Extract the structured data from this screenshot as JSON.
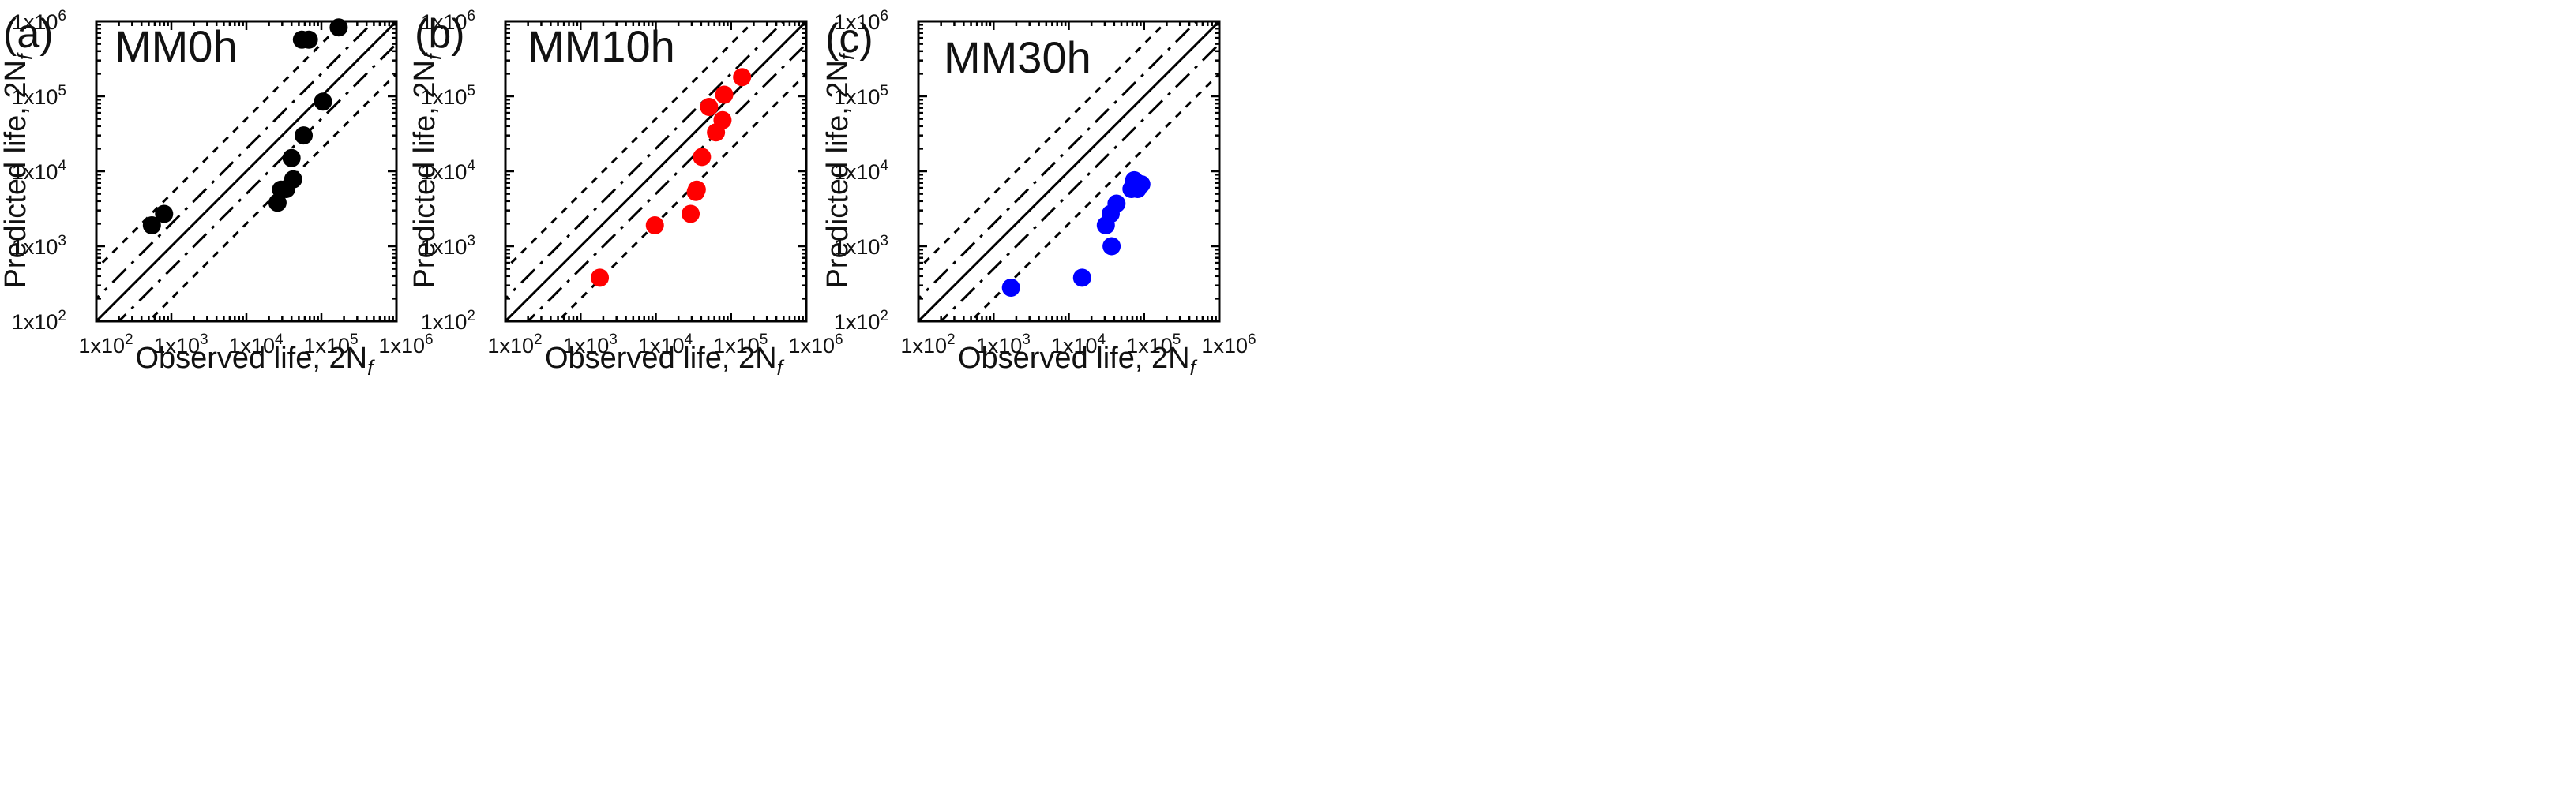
{
  "figure": {
    "panels": [
      {
        "panel_label": "(a)",
        "title": "MM0h"
      },
      {
        "panel_label": "(b)",
        "title": "MM10h"
      },
      {
        "panel_label": "(c)",
        "title": "MM30h"
      }
    ],
    "xlabel": "Observed life, 2N",
    "xlabel_sub": "f",
    "ylabel": "Predicted life, 2N",
    "ylabel_sub": "f",
    "tick_labels": [
      {
        "base": "1x10",
        "exp": "2"
      },
      {
        "base": "1x10",
        "exp": "3"
      },
      {
        "base": "1x10",
        "exp": "4"
      },
      {
        "base": "1x10",
        "exp": "5"
      },
      {
        "base": "1x10",
        "exp": "6"
      }
    ]
  },
  "chart_data": [
    {
      "type": "scatter",
      "title": "MM0h",
      "xlabel": "Observed life, 2Nf",
      "ylabel": "Predicted life, 2Nf",
      "xscale": "log",
      "yscale": "log",
      "xlim": [
        100,
        1000000
      ],
      "ylim": [
        100,
        1000000
      ],
      "grid": false,
      "reference_lines": [
        {
          "style": "solid",
          "factor": 1
        },
        {
          "style": "dash-dot",
          "factors": [
            2,
            0.5
          ]
        },
        {
          "style": "dotted",
          "factors": [
            5,
            0.2
          ]
        }
      ],
      "series": [
        {
          "color": "#000000",
          "points": [
            [
              550,
              1900
            ],
            [
              800,
              2700
            ],
            [
              26000,
              3800
            ],
            [
              29000,
              5700
            ],
            [
              34000,
              5800
            ],
            [
              42000,
              7800
            ],
            [
              40000,
              15000
            ],
            [
              58000,
              30000
            ],
            [
              105000,
              85000
            ],
            [
              55000,
              570000
            ],
            [
              68000,
              570000
            ],
            [
              170000,
              830000
            ]
          ]
        }
      ]
    },
    {
      "type": "scatter",
      "title": "MM10h",
      "xlabel": "Observed life, 2Nf",
      "ylabel": "Predicted life, 2Nf",
      "xscale": "log",
      "yscale": "log",
      "xlim": [
        100,
        1000000
      ],
      "ylim": [
        100,
        1000000
      ],
      "grid": false,
      "reference_lines": [
        {
          "style": "solid",
          "factor": 1
        },
        {
          "style": "dash-dot",
          "factors": [
            2,
            0.5
          ]
        },
        {
          "style": "dotted",
          "factors": [
            5,
            0.2
          ]
        }
      ],
      "series": [
        {
          "color": "#ff0000",
          "points": [
            [
              1800,
              380
            ],
            [
              9700,
              1900
            ],
            [
              29000,
              2700
            ],
            [
              34000,
              5300
            ],
            [
              35000,
              5700
            ],
            [
              41000,
              15500
            ],
            [
              63000,
              33000
            ],
            [
              77000,
              48000
            ],
            [
              51000,
              72000
            ],
            [
              81000,
              105000
            ],
            [
              140000,
              180000
            ]
          ]
        }
      ]
    },
    {
      "type": "scatter",
      "title": "MM30h",
      "xlabel": "Observed life, 2Nf",
      "ylabel": "Predicted life, 2Nf",
      "xscale": "log",
      "yscale": "log",
      "xlim": [
        100,
        1000000
      ],
      "ylim": [
        100,
        1000000
      ],
      "grid": false,
      "reference_lines": [
        {
          "style": "solid",
          "factor": 1
        },
        {
          "style": "dash-dot",
          "factors": [
            2,
            0.5
          ]
        },
        {
          "style": "dotted",
          "factors": [
            5,
            0.2
          ]
        }
      ],
      "series": [
        {
          "color": "#0000ff",
          "points": [
            [
              1700,
              280
            ],
            [
              15000,
              380
            ],
            [
              37000,
              1000
            ],
            [
              31000,
              1900
            ],
            [
              36000,
              2700
            ],
            [
              43000,
              3700
            ],
            [
              68000,
              5800
            ],
            [
              82000,
              5800
            ],
            [
              74000,
              7600
            ],
            [
              92000,
              6700
            ]
          ]
        }
      ]
    }
  ]
}
